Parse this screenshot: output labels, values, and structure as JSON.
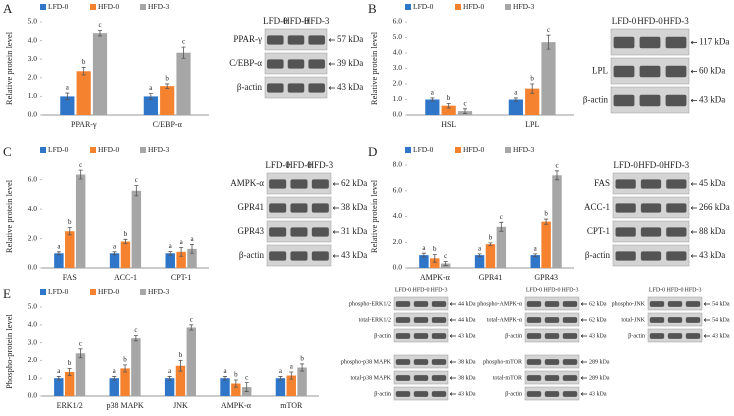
{
  "chart_data": [
    {
      "type": "bar",
      "panel": "A",
      "y_label": "Relative protein level",
      "categories": [
        "PPAR-γ",
        "C/EBP-α"
      ],
      "series": [
        {
          "name": "LFD-0",
          "color": "#2f75c8",
          "values": [
            1.0,
            1.0
          ],
          "errors": [
            0.18,
            0.15
          ],
          "sig_labels": [
            "a",
            "a"
          ]
        },
        {
          "name": "HFD-0",
          "color": "#f5822f",
          "values": [
            2.35,
            1.55
          ],
          "errors": [
            0.2,
            0.12
          ],
          "sig_labels": [
            "b",
            "b"
          ]
        },
        {
          "name": "HFD-3",
          "color": "#a6a6a6",
          "values": [
            4.4,
            3.35
          ],
          "errors": [
            0.15,
            0.3
          ],
          "sig_labels": [
            "c",
            "c"
          ]
        }
      ],
      "ylim": [
        0,
        5
      ],
      "yticks": [
        {
          "value": 0,
          "label": "0.0"
        },
        {
          "value": 1,
          "label": "1.0"
        },
        {
          "value": 2,
          "label": "2.0"
        },
        {
          "value": 3,
          "label": "3.0"
        },
        {
          "value": 4,
          "label": "4.0"
        },
        {
          "value": 5,
          "label": "5.0"
        }
      ],
      "legend": "top-left"
    },
    {
      "type": "bar",
      "panel": "B",
      "y_label": "Relative protein level",
      "categories": [
        "HSL",
        "LPL"
      ],
      "series": [
        {
          "name": "LFD-0",
          "color": "#2f75c8",
          "values": [
            1.0,
            1.0
          ],
          "errors": [
            0.1,
            0.1
          ],
          "sig_labels": [
            "a",
            "a"
          ]
        },
        {
          "name": "HFD-0",
          "color": "#f5822f",
          "values": [
            0.6,
            1.7
          ],
          "errors": [
            0.15,
            0.3
          ],
          "sig_labels": [
            "b",
            "b"
          ]
        },
        {
          "name": "HFD-3",
          "color": "#a6a6a6",
          "values": [
            0.25,
            4.7
          ],
          "errors": [
            0.15,
            0.45
          ],
          "sig_labels": [
            "c",
            "c"
          ]
        }
      ],
      "ylim": [
        0,
        6
      ],
      "yticks": [
        {
          "value": 0,
          "label": "0.0"
        },
        {
          "value": 1,
          "label": "1.0"
        },
        {
          "value": 2,
          "label": "2.0"
        },
        {
          "value": 3,
          "label": "3.0"
        },
        {
          "value": 4,
          "label": "4.0"
        },
        {
          "value": 5,
          "label": "5.0"
        },
        {
          "value": 6,
          "label": "6.0"
        }
      ],
      "legend": "top-left"
    },
    {
      "type": "bar",
      "panel": "C",
      "y_label": "Relative protein level",
      "categories": [
        "FAS",
        "ACC-1",
        "CPT-1"
      ],
      "series": [
        {
          "name": "LFD-0",
          "color": "#2f75c8",
          "values": [
            1.0,
            1.0,
            1.0
          ],
          "errors": [
            0.1,
            0.1,
            0.12
          ],
          "sig_labels": [
            "a",
            "a",
            "a"
          ]
        },
        {
          "name": "HFD-0",
          "color": "#f5822f",
          "values": [
            2.5,
            1.8,
            1.1
          ],
          "errors": [
            0.25,
            0.15,
            0.3
          ],
          "sig_labels": [
            "b",
            "b",
            "a"
          ]
        },
        {
          "name": "HFD-3",
          "color": "#a6a6a6",
          "values": [
            6.35,
            5.25,
            1.3
          ],
          "errors": [
            0.3,
            0.35,
            0.3
          ],
          "sig_labels": [
            "c",
            "c",
            "a"
          ]
        }
      ],
      "ylim": [
        0,
        7
      ],
      "yticks": [
        {
          "value": 0,
          "label": "0.0"
        },
        {
          "value": 2,
          "label": "2.0"
        },
        {
          "value": 4,
          "label": "4.0"
        },
        {
          "value": 6,
          "label": "6.0"
        }
      ],
      "legend": "top-left"
    },
    {
      "type": "bar",
      "panel": "D",
      "y_label": "Relative protein level",
      "categories": [
        "AMPK-α",
        "GPR41",
        "GPR43"
      ],
      "series": [
        {
          "name": "LFD-0",
          "color": "#2f75c8",
          "values": [
            1.0,
            1.0,
            1.0
          ],
          "errors": [
            0.15,
            0.1,
            0.1
          ],
          "sig_labels": [
            "a",
            "a",
            "a"
          ]
        },
        {
          "name": "HFD-0",
          "color": "#f5822f",
          "values": [
            0.75,
            1.85,
            3.6
          ],
          "errors": [
            0.3,
            0.1,
            0.2
          ],
          "sig_labels": [
            "b",
            "b",
            "b"
          ]
        },
        {
          "name": "HFD-3",
          "color": "#a6a6a6",
          "values": [
            0.35,
            3.2,
            7.2
          ],
          "errors": [
            0.15,
            0.35,
            0.35
          ],
          "sig_labels": [
            "c",
            "c",
            "c"
          ]
        }
      ],
      "ylim": [
        0,
        8
      ],
      "yticks": [
        {
          "value": 0,
          "label": "0.0"
        },
        {
          "value": 2,
          "label": "2.0"
        },
        {
          "value": 4,
          "label": "4.0"
        },
        {
          "value": 6,
          "label": "6.0"
        },
        {
          "value": 8,
          "label": "8.0"
        }
      ],
      "legend": "top-left"
    },
    {
      "type": "bar",
      "panel": "E",
      "y_label": "Phospho-protein level",
      "categories": [
        "ERK1/2",
        "p38 MAPK",
        "JNK",
        "AMPK-α",
        "mTOR"
      ],
      "series": [
        {
          "name": "LFD-0",
          "color": "#2f75c8",
          "values": [
            1.0,
            1.0,
            1.0,
            1.0,
            1.0
          ],
          "errors": [
            0.1,
            0.1,
            0.1,
            0.1,
            0.1
          ],
          "sig_labels": [
            "a",
            "a",
            "a",
            "a",
            "a"
          ]
        },
        {
          "name": "HFD-0",
          "color": "#f5822f",
          "values": [
            1.35,
            1.55,
            1.7,
            0.7,
            1.15
          ],
          "errors": [
            0.2,
            0.2,
            0.3,
            0.2,
            0.2
          ],
          "sig_labels": [
            "b",
            "b",
            "b",
            "b",
            "a"
          ]
        },
        {
          "name": "HFD-3",
          "color": "#a6a6a6",
          "values": [
            2.4,
            3.25,
            3.85,
            0.5,
            1.6
          ],
          "errors": [
            0.25,
            0.15,
            0.15,
            0.25,
            0.2
          ],
          "sig_labels": [
            "c",
            "c",
            "c",
            "c",
            "b"
          ]
        }
      ],
      "ylim": [
        0,
        5
      ],
      "yticks": [
        {
          "value": 0,
          "label": "0.0"
        },
        {
          "value": 1,
          "label": "1.0"
        },
        {
          "value": 2,
          "label": "2.0"
        },
        {
          "value": 3,
          "label": "3.0"
        },
        {
          "value": 4,
          "label": "4.0"
        },
        {
          "value": 5,
          "label": "5.0"
        }
      ],
      "legend": "top-left"
    }
  ],
  "blots": [
    {
      "lanes": [
        "LFD-0",
        "HFD-0",
        "HFD-3"
      ],
      "groups": [
        [
          {
            "name": "PPAR-γ",
            "size": "57 kDa"
          },
          {
            "name": "C/EBP-α",
            "size": "39 kDa"
          },
          {
            "name": "β-actin",
            "size": "43 kDa"
          }
        ]
      ]
    },
    {
      "lanes": [
        "LFD-0",
        "HFD-0",
        "HFD-3"
      ],
      "groups": [
        [
          {
            "size": "117 kDa"
          },
          {
            "name": "LPL",
            "size": "60 kDa"
          },
          {
            "name": "β-actin",
            "size": "43 kDa"
          }
        ]
      ]
    },
    {
      "lanes": [
        "LFD-0",
        "HFD-0",
        "HFD-3"
      ],
      "groups": [
        [
          {
            "name": "AMPK-α",
            "size": "62 kDa"
          },
          {
            "name": "GPR41",
            "size": "38 kDa"
          },
          {
            "name": "GPR43",
            "size": "31 kDa"
          },
          {
            "name": "β-actin",
            "size": "43 kDa"
          }
        ]
      ]
    },
    {
      "lanes": [
        "LFD-0",
        "HFD-0",
        "HFD-3"
      ],
      "groups": [
        [
          {
            "name": "FAS",
            "size": "45 kDa"
          },
          {
            "name": "ACC-1",
            "size": "266 kDa"
          },
          {
            "name": "CPT-1",
            "size": "88 kDa"
          },
          {
            "name": "β-actin",
            "size": "43 kDa"
          }
        ]
      ]
    },
    {
      "lanes": [
        "LFD-0",
        "HFD-0",
        "HFD-3"
      ],
      "groups": [
        [
          {
            "name": "phospho-ERK1/2",
            "size": "44 kDa"
          },
          {
            "name": "total-ERK1/2",
            "size": "44 kDa"
          },
          {
            "name": "β-actin",
            "size": "43 kDa"
          }
        ],
        [
          {
            "name": "phospho-p38 MAPK",
            "size": "38 kDa"
          },
          {
            "name": "total-p38 MAPK",
            "size": "38 kDa"
          },
          {
            "name": "β-actin",
            "size": "43 kDa"
          }
        ]
      ]
    },
    {
      "lanes": [
        "LFD-0",
        "HFD-0",
        "HFD-3"
      ],
      "groups": [
        [
          {
            "name": "phospho-AMPK-α",
            "size": "62 kDa"
          },
          {
            "name": "total-AMPK-α",
            "size": "62 kDa"
          },
          {
            "name": "β-actin",
            "size": "43 kDa"
          }
        ],
        [
          {
            "name": "phospho-mTOR",
            "size": "289 kDa"
          },
          {
            "name": "total-mTOR",
            "size": "289 kDa"
          },
          {
            "name": "β-actin",
            "size": "43 kDa"
          }
        ]
      ]
    },
    {
      "lanes": [
        "LFD-0",
        "HFD-0",
        "HFD-3"
      ],
      "groups": [
        [
          {
            "name": "phospho-JNK",
            "size": "54 kDa"
          },
          {
            "name": "total-JNK",
            "size": "54 kDa"
          },
          {
            "name": "β-actin",
            "size": "43 kDa"
          }
        ]
      ]
    }
  ]
}
